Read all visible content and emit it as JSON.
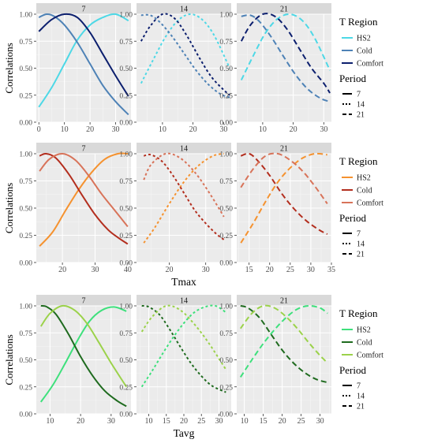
{
  "figure": {
    "ylabel": "Correlations",
    "xlabels": [
      "",
      "Tmax",
      "Tavg"
    ],
    "legend_region_title": "T Region",
    "legend_period_title": "Period",
    "period_labels": [
      "7",
      "14",
      "21"
    ]
  },
  "colors": {
    "panel_bg": "#ebebeb",
    "strip_bg": "#d9d9d9",
    "grid_major": "#ffffff",
    "grid_minor": "#f5f5f5",
    "row1": {
      "HS2": "#4dd8e6",
      "Cold": "#4e82b6",
      "Comfort": "#0c1f6e"
    },
    "row2": {
      "HS2": "#f5922f",
      "Cold": "#b32e1e",
      "Comfort": "#d87359"
    },
    "row3": {
      "HS2": "#3ee07c",
      "Cold": "#1f6b1f",
      "Comfort": "#9bd24a"
    }
  },
  "chart_data": [
    {
      "type": "line",
      "row": 1,
      "region_names": [
        "HS2",
        "Cold",
        "Comfort"
      ],
      "ylim": [
        0,
        1
      ],
      "yticks": [
        0.0,
        0.25,
        0.5,
        0.75,
        1.0
      ],
      "panels": [
        {
          "strip": "7",
          "period": "7",
          "xlim": [
            -1,
            36
          ],
          "xticks": [
            0,
            10,
            20,
            30
          ],
          "series": [
            {
              "name": "HS2",
              "x": [
                0,
                5,
                10,
                15,
                20,
                25,
                30,
                35
              ],
              "y": [
                0.14,
                0.32,
                0.54,
                0.76,
                0.9,
                0.97,
                1.0,
                0.94
              ]
            },
            {
              "name": "Cold",
              "x": [
                0,
                3,
                6,
                10,
                15,
                20,
                25,
                30,
                35
              ],
              "y": [
                0.97,
                1.0,
                0.98,
                0.9,
                0.74,
                0.54,
                0.34,
                0.19,
                0.07
              ]
            },
            {
              "name": "Comfort",
              "x": [
                0,
                5,
                10,
                15,
                20,
                25,
                30,
                35
              ],
              "y": [
                0.84,
                0.95,
                1.0,
                0.97,
                0.83,
                0.63,
                0.43,
                0.24
              ]
            }
          ]
        },
        {
          "strip": "14",
          "period": "14",
          "xlim": [
            1.5,
            32.5
          ],
          "xticks": [
            10,
            20,
            30
          ],
          "series": [
            {
              "name": "HS2",
              "x": [
                3,
                7,
                11,
                15,
                19,
                23,
                27,
                32
              ],
              "y": [
                0.36,
                0.58,
                0.79,
                0.94,
                1.0,
                0.95,
                0.8,
                0.5
              ]
            },
            {
              "name": "Cold",
              "x": [
                3,
                6,
                9,
                13,
                17,
                21,
                25,
                29,
                32
              ],
              "y": [
                0.99,
                0.99,
                0.93,
                0.8,
                0.64,
                0.48,
                0.35,
                0.26,
                0.23
              ]
            },
            {
              "name": "Comfort",
              "x": [
                3,
                6,
                10,
                14,
                18,
                22,
                26,
                30,
                32
              ],
              "y": [
                0.75,
                0.89,
                1.0,
                0.96,
                0.8,
                0.6,
                0.42,
                0.3,
                0.25
              ]
            }
          ]
        },
        {
          "strip": "21",
          "period": "21",
          "xlim": [
            1.5,
            32.5
          ],
          "xticks": [
            10,
            20,
            30
          ],
          "series": [
            {
              "name": "HS2",
              "x": [
                3,
                7,
                11,
                15,
                19,
                23,
                27,
                32
              ],
              "y": [
                0.39,
                0.62,
                0.83,
                0.96,
                1.0,
                0.94,
                0.78,
                0.48
              ]
            },
            {
              "name": "Cold",
              "x": [
                3,
                6,
                9,
                13,
                17,
                21,
                25,
                29,
                32
              ],
              "y": [
                0.98,
                0.99,
                0.93,
                0.78,
                0.6,
                0.43,
                0.3,
                0.22,
                0.19
              ]
            },
            {
              "name": "Comfort",
              "x": [
                3,
                6,
                10,
                14,
                18,
                22,
                26,
                30,
                32
              ],
              "y": [
                0.75,
                0.9,
                1.0,
                0.98,
                0.86,
                0.68,
                0.5,
                0.36,
                0.27
              ]
            }
          ]
        }
      ]
    },
    {
      "type": "line",
      "row": 2,
      "xlabel": "Tmax",
      "region_names": [
        "HS2",
        "Cold",
        "Comfort"
      ],
      "ylim": [
        0,
        1
      ],
      "yticks": [
        0.0,
        0.25,
        0.5,
        0.75,
        1.0
      ],
      "panels": [
        {
          "strip": "7",
          "period": "7",
          "xlim": [
            12,
            41
          ],
          "xticks": [
            20,
            30,
            40
          ],
          "series": [
            {
              "name": "HS2",
              "x": [
                13,
                17,
                21,
                25,
                29,
                33,
                37,
                40
              ],
              "y": [
                0.15,
                0.28,
                0.48,
                0.67,
                0.83,
                0.95,
                1.0,
                1.0
              ]
            },
            {
              "name": "Cold",
              "x": [
                13,
                15,
                18,
                22,
                26,
                30,
                34,
                37,
                40
              ],
              "y": [
                0.98,
                1.0,
                0.96,
                0.81,
                0.62,
                0.44,
                0.3,
                0.23,
                0.17
              ]
            },
            {
              "name": "Comfort",
              "x": [
                13,
                16,
                20,
                24,
                28,
                32,
                36,
                40
              ],
              "y": [
                0.84,
                0.95,
                1.0,
                0.94,
                0.8,
                0.63,
                0.48,
                0.33
              ]
            }
          ]
        },
        {
          "strip": "14",
          "period": "14",
          "xlim": [
            11,
            37
          ],
          "xticks": [
            20,
            30
          ],
          "series": [
            {
              "name": "HS2",
              "x": [
                13,
                16,
                20,
                24,
                28,
                32,
                35
              ],
              "y": [
                0.18,
                0.32,
                0.54,
                0.74,
                0.89,
                0.98,
                1.0
              ]
            },
            {
              "name": "Cold",
              "x": [
                13,
                15,
                18,
                21,
                24,
                27,
                30,
                33,
                35
              ],
              "y": [
                0.98,
                0.99,
                0.93,
                0.8,
                0.64,
                0.48,
                0.36,
                0.26,
                0.21
              ]
            },
            {
              "name": "Comfort",
              "x": [
                13,
                15,
                19,
                23,
                27,
                31,
                35
              ],
              "y": [
                0.76,
                0.9,
                1.0,
                0.96,
                0.83,
                0.64,
                0.42
              ]
            }
          ]
        },
        {
          "strip": "21",
          "period": "21",
          "xlim": [
            12,
            35
          ],
          "xticks": [
            15,
            20,
            25,
            30,
            35
          ],
          "series": [
            {
              "name": "HS2",
              "x": [
                13,
                16,
                19,
                22,
                25,
                28,
                31,
                34
              ],
              "y": [
                0.18,
                0.36,
                0.56,
                0.74,
                0.87,
                0.96,
                1.0,
                0.99
              ]
            },
            {
              "name": "Cold",
              "x": [
                13,
                15,
                17,
                20,
                23,
                26,
                29,
                32,
                34
              ],
              "y": [
                0.98,
                1.0,
                0.94,
                0.8,
                0.63,
                0.49,
                0.38,
                0.3,
                0.26
              ]
            },
            {
              "name": "Comfort",
              "x": [
                13,
                16,
                19,
                22,
                25,
                28,
                31,
                34
              ],
              "y": [
                0.69,
                0.86,
                0.98,
                1.0,
                0.94,
                0.84,
                0.7,
                0.54
              ]
            }
          ]
        }
      ]
    },
    {
      "type": "line",
      "row": 3,
      "xlabel": "Tavg",
      "region_names": [
        "HS2",
        "Cold",
        "Comfort"
      ],
      "ylim": [
        0,
        1
      ],
      "yticks": [
        0.0,
        0.25,
        0.5,
        0.75,
        1.0
      ],
      "panels": [
        {
          "strip": "7",
          "period": "7",
          "xlim": [
            5.5,
            36.5
          ],
          "xticks": [
            10,
            20,
            30
          ],
          "series": [
            {
              "name": "HS2",
              "x": [
                7,
                11,
                15,
                19,
                23,
                27,
                31,
                35
              ],
              "y": [
                0.11,
                0.27,
                0.47,
                0.68,
                0.86,
                0.96,
                0.99,
                0.95
              ]
            },
            {
              "name": "Cold",
              "x": [
                7,
                9,
                12,
                16,
                20,
                24,
                28,
                32,
                35
              ],
              "y": [
                1.0,
                0.99,
                0.92,
                0.74,
                0.53,
                0.35,
                0.21,
                0.12,
                0.07
              ]
            },
            {
              "name": "Comfort",
              "x": [
                7,
                10,
                14,
                18,
                22,
                26,
                30,
                35
              ],
              "y": [
                0.81,
                0.93,
                1.0,
                0.96,
                0.84,
                0.66,
                0.47,
                0.25
              ]
            }
          ]
        },
        {
          "strip": "14",
          "period": "14",
          "xlim": [
            6.5,
            33.5
          ],
          "xticks": [
            10,
            15,
            20,
            25,
            30
          ],
          "series": [
            {
              "name": "HS2",
              "x": [
                8,
                11,
                14,
                17,
                20,
                23,
                26,
                29,
                32
              ],
              "y": [
                0.25,
                0.4,
                0.56,
                0.71,
                0.84,
                0.94,
                0.99,
                1.0,
                0.94
              ]
            },
            {
              "name": "Cold",
              "x": [
                8,
                10,
                13,
                16,
                19,
                22,
                25,
                28,
                32
              ],
              "y": [
                1.0,
                0.99,
                0.92,
                0.78,
                0.62,
                0.47,
                0.35,
                0.26,
                0.2
              ]
            },
            {
              "name": "Comfort",
              "x": [
                8,
                11,
                15,
                19,
                23,
                27,
                32
              ],
              "y": [
                0.76,
                0.9,
                1.0,
                0.96,
                0.83,
                0.66,
                0.41
              ]
            }
          ]
        },
        {
          "strip": "21",
          "period": "21",
          "xlim": [
            8,
            33
          ],
          "xticks": [
            10,
            15,
            20,
            25,
            30
          ],
          "series": [
            {
              "name": "HS2",
              "x": [
                9,
                12,
                15,
                18,
                21,
                24,
                27,
                30,
                32
              ],
              "y": [
                0.34,
                0.5,
                0.65,
                0.78,
                0.89,
                0.97,
                1.0,
                0.98,
                0.93
              ]
            },
            {
              "name": "Cold",
              "x": [
                9,
                11,
                14,
                17,
                20,
                23,
                26,
                29,
                32
              ],
              "y": [
                1.0,
                0.98,
                0.89,
                0.74,
                0.59,
                0.47,
                0.38,
                0.32,
                0.29
              ]
            },
            {
              "name": "Comfort",
              "x": [
                9,
                12,
                15,
                18,
                21,
                24,
                27,
                30,
                32
              ],
              "y": [
                0.79,
                0.93,
                1.0,
                0.98,
                0.9,
                0.79,
                0.66,
                0.54,
                0.47
              ]
            }
          ]
        }
      ]
    }
  ]
}
